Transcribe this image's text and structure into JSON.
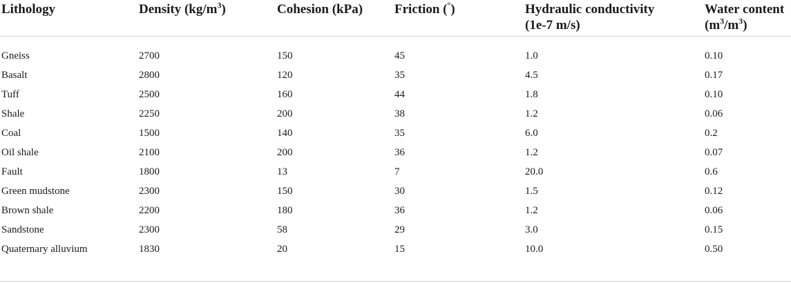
{
  "table": {
    "headers": [
      {
        "line1": "Lithology",
        "line2": ""
      },
      {
        "line1": "Density (kg/m",
        "sup": "3",
        "tail": ")",
        "line2": ""
      },
      {
        "line1": "Cohesion (kPa)",
        "line2": ""
      },
      {
        "line1": "Friction (",
        "sup": "°",
        "tail": ")",
        "line2": ""
      },
      {
        "line1": "Hydraulic conductivity",
        "line2": "(1e-7 m/s)"
      },
      {
        "line1": "Water content",
        "line2a": "(m",
        "sup2a": "3",
        "line2b": "/m",
        "sup2b": "3",
        "line2c": ")"
      }
    ],
    "rows": [
      [
        "Gneiss",
        "2700",
        "150",
        "45",
        "1.0",
        "0.10"
      ],
      [
        "Basalt",
        "2800",
        "120",
        "35",
        "4.5",
        "0.17"
      ],
      [
        "Tuff",
        "2500",
        "160",
        "44",
        "1.8",
        "0.10"
      ],
      [
        "Shale",
        "2250",
        "200",
        "38",
        "1.2",
        "0.06"
      ],
      [
        "Coal",
        "1500",
        "140",
        "35",
        "6.0",
        "0.2"
      ],
      [
        "Oil shale",
        "2100",
        "200",
        "36",
        "1.2",
        "0.07"
      ],
      [
        "Fault",
        "1800",
        "13",
        "7",
        "20.0",
        "0.6"
      ],
      [
        "Green mudstone",
        "2300",
        "150",
        "30",
        "1.5",
        "0.12"
      ],
      [
        "Brown shale",
        "2200",
        "180",
        "36",
        "1.2",
        "0.06"
      ],
      [
        "Sandstone",
        "2300",
        "58",
        "29",
        "3.0",
        "0.15"
      ],
      [
        "Quaternary alluvium",
        "1830",
        "20",
        "15",
        "10.0",
        "0.50"
      ]
    ]
  }
}
